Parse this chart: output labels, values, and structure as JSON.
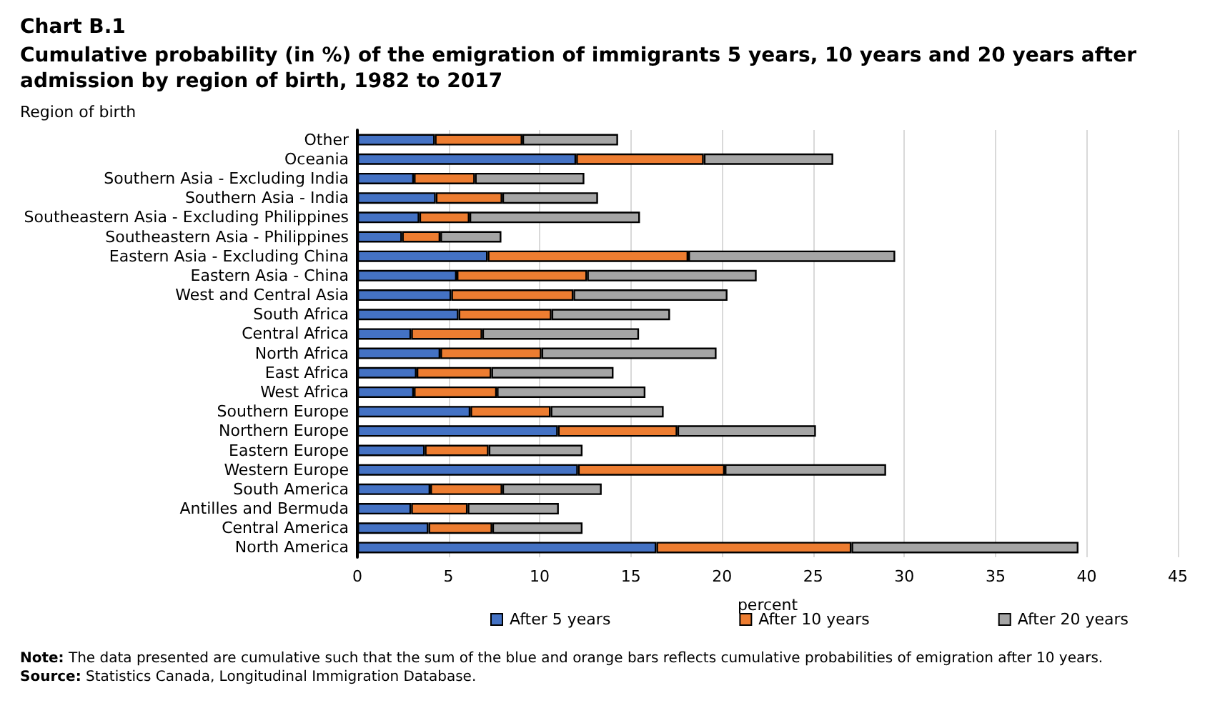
{
  "chart_data": {
    "type": "bar",
    "orientation": "horizontal",
    "stacked": true,
    "title": "Chart B.1",
    "subtitle": "Cumulative probability (in %) of the emigration of immigrants 5 years, 10 years and 20 years after admission by region of birth, 1982 to 2017",
    "ylabel": "Region of birth",
    "xlabel": "percent",
    "categories": [
      "Other",
      "Oceania",
      "Southern Asia - Excluding India",
      "Southern Asia - India",
      "Southeastern Asia - Excluding Philippines",
      "Southeastern Asia - Philippines",
      "Eastern Asia - Excluding China",
      "Eastern Asia - China",
      "West and Central Asia",
      "South Africa",
      "Central Africa",
      "North Africa",
      "East Africa",
      "West Africa",
      "Southern Europe",
      "Northern Europe",
      "Eastern Europe",
      "Western Europe",
      "South America",
      "Antilles and Bermuda",
      "Central America",
      "North America"
    ],
    "series": [
      {
        "name": "After 5 years",
        "color": "#4472c4",
        "values": [
          4.25,
          12.0,
          3.1,
          4.3,
          3.4,
          2.45,
          7.15,
          5.45,
          5.15,
          5.55,
          2.95,
          4.55,
          3.25,
          3.1,
          6.2,
          11.0,
          3.7,
          12.1,
          4.0,
          2.95,
          3.9,
          16.4
        ]
      },
      {
        "name": "After 10 years",
        "color": "#ed7d31",
        "values": [
          4.8,
          7.0,
          3.35,
          3.65,
          2.75,
          2.1,
          11.0,
          7.15,
          6.7,
          5.1,
          3.9,
          5.55,
          4.1,
          4.55,
          4.4,
          6.55,
          3.5,
          8.05,
          3.95,
          3.1,
          3.5,
          10.7
        ]
      },
      {
        "name": "After 20 years",
        "color": "#a5a5a5",
        "values": [
          5.25,
          7.1,
          6.0,
          5.25,
          9.35,
          3.35,
          11.35,
          9.3,
          8.45,
          6.5,
          8.6,
          9.6,
          6.7,
          8.15,
          6.2,
          7.6,
          5.15,
          8.85,
          5.45,
          5.0,
          4.95,
          12.45
        ]
      }
    ],
    "xlim": [
      0,
      45
    ],
    "xticks": [
      0,
      5,
      10,
      15,
      20,
      25,
      30,
      35,
      40,
      45
    ],
    "grid": "x",
    "legend": "bottom",
    "annotations": [
      "Note: The data presented are cumulative such that the sum of the blue and orange bars reflects cumulative probabilities of emigration after 10 years.",
      "Source: Statistics Canada, Longitudinal Immigration Database."
    ]
  }
}
